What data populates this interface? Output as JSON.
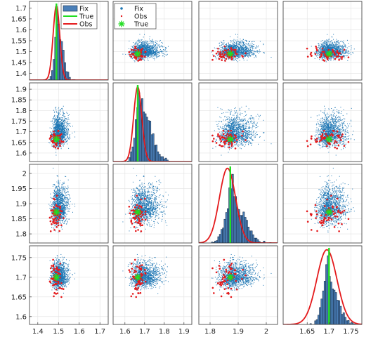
{
  "chart_data": {
    "type": "scatter",
    "layout": "pairplot-4x4",
    "variables": [
      {
        "center_fix": 1.5,
        "sd_fix": 0.018,
        "true": 1.49,
        "obs_mean": 1.49,
        "obs_sd": 0.014,
        "range": [
          1.36,
          1.74
        ]
      },
      {
        "center_fix": 1.69,
        "sd_fix": 0.035,
        "true": 1.665,
        "obs_mean": 1.665,
        "obs_sd": 0.018,
        "range": [
          1.54,
          1.94
        ]
      },
      {
        "center_fix": 1.885,
        "sd_fix": 0.03,
        "true": 1.872,
        "obs_mean": 1.862,
        "obs_sd": 0.025,
        "range": [
          1.76,
          2.02
        ]
      },
      {
        "center_fix": 1.7,
        "sd_fix": 0.015,
        "true": 1.7,
        "obs_mean": 1.695,
        "obs_sd": 0.02,
        "range": [
          1.57,
          1.78
        ]
      }
    ],
    "x_ticks": [
      [
        "1.4",
        "1.5",
        "1.6",
        "1.7"
      ],
      [
        "1.6",
        "1.7",
        "1.8",
        "1.9"
      ],
      [
        "1.8",
        "1.9",
        "2"
      ],
      [
        "1.65",
        "1.7",
        "1.75"
      ]
    ],
    "x_tick_values": [
      [
        1.4,
        1.5,
        1.6,
        1.7
      ],
      [
        1.6,
        1.7,
        1.8,
        1.9
      ],
      [
        1.8,
        1.9,
        2.0
      ],
      [
        1.65,
        1.7,
        1.75
      ]
    ],
    "x_limits": [
      [
        1.36,
        1.74
      ],
      [
        1.54,
        1.94
      ],
      [
        1.76,
        2.04
      ],
      [
        1.595,
        1.775
      ]
    ],
    "y_ticks": [
      [
        "1.4",
        "1.45",
        "1.5",
        "1.55",
        "1.6",
        "1.65",
        "1.7"
      ],
      [
        "1.6",
        "1.65",
        "1.7",
        "1.75",
        "1.8",
        "1.85",
        "1.9"
      ],
      [
        "1.8",
        "1.85",
        "1.9",
        "1.95",
        "2"
      ],
      [
        "1.6",
        "1.65",
        "1.7",
        "1.75"
      ]
    ],
    "y_tick_values": [
      [
        1.4,
        1.45,
        1.5,
        1.55,
        1.6,
        1.65,
        1.7
      ],
      [
        1.6,
        1.65,
        1.7,
        1.75,
        1.8,
        1.85,
        1.9
      ],
      [
        1.8,
        1.85,
        1.9,
        1.95,
        2.0
      ],
      [
        1.6,
        1.65,
        1.7,
        1.75
      ]
    ],
    "y_limits": [
      [
        1.37,
        1.73
      ],
      [
        1.56,
        1.93
      ],
      [
        1.77,
        2.03
      ],
      [
        1.58,
        1.78
      ]
    ],
    "hist_legend": [
      {
        "label": "Fix",
        "kind": "bar"
      },
      {
        "label": "True",
        "kind": "line"
      },
      {
        "label": "Obs",
        "kind": "line"
      }
    ],
    "scatter_legend": [
      {
        "label": "Fix",
        "kind": "dot"
      },
      {
        "label": "Obs",
        "kind": "small-dot"
      },
      {
        "label": "True",
        "kind": "star"
      }
    ],
    "grid": true
  },
  "colors": {
    "fix": "#1f77b4",
    "fix_bar": "#4a7fb8",
    "fix_bar_edge": "#1a2f4a",
    "true": "#22dd22",
    "obs": "#e41a1c",
    "frame": "#333333"
  }
}
